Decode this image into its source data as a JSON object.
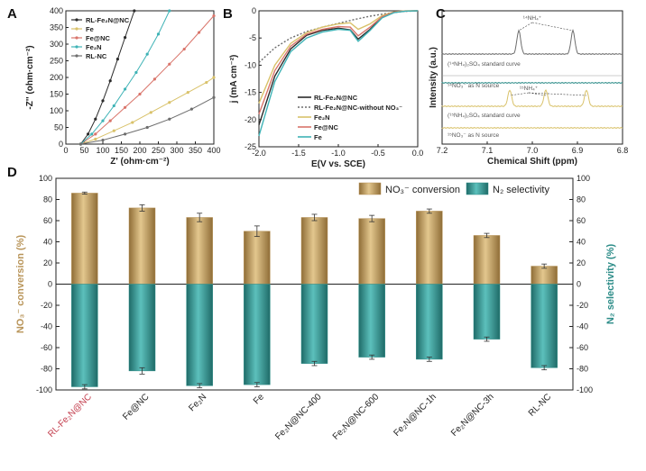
{
  "colors": {
    "rl_fe2n": "#2b2b2b",
    "fe": "#d9c26a",
    "fe_nc": "#d9746a",
    "fe2n": "#3fb3b6",
    "rl_nc": "#6d6d6d",
    "d_conv": "#b9955a",
    "d_sel": "#2c8c88",
    "highlight": "#c23a4a"
  },
  "chart_data": [
    {
      "panel": "A",
      "type": "line",
      "xlabel": "Z' (ohm·cm⁻²)",
      "ylabel": "-Z'' (ohm·cm⁻²)",
      "xlim": [
        0,
        400
      ],
      "ylim": [
        0,
        400
      ],
      "xticks": [
        "0",
        "50",
        "100",
        "150",
        "200",
        "250",
        "300",
        "350",
        "400"
      ],
      "yticks": [
        "0",
        "50",
        "100",
        "150",
        "200",
        "250",
        "300",
        "350",
        "400"
      ],
      "series": [
        {
          "name": "RL-Fe₂N@NC",
          "color_key": "rl_fe2n",
          "x": [
            40,
            60,
            80,
            100,
            120,
            140,
            160,
            185
          ],
          "y": [
            0,
            30,
            75,
            130,
            190,
            255,
            320,
            400
          ]
        },
        {
          "name": "Fe",
          "color_key": "fe",
          "x": [
            40,
            80,
            130,
            180,
            230,
            280,
            330,
            380,
            400
          ],
          "y": [
            0,
            15,
            40,
            65,
            95,
            125,
            155,
            185,
            200
          ]
        },
        {
          "name": "Fe@NC",
          "color_key": "fe_nc",
          "x": [
            40,
            80,
            120,
            160,
            200,
            240,
            280,
            320,
            360,
            400
          ],
          "y": [
            0,
            30,
            70,
            110,
            150,
            195,
            240,
            285,
            335,
            385
          ]
        },
        {
          "name": "Fe₂N",
          "color_key": "fe2n",
          "x": [
            40,
            70,
            100,
            130,
            160,
            190,
            220,
            250,
            280
          ],
          "y": [
            0,
            30,
            70,
            115,
            165,
            215,
            270,
            330,
            400
          ]
        },
        {
          "name": "RL-NC",
          "color_key": "rl_nc",
          "x": [
            40,
            100,
            160,
            220,
            280,
            340,
            400
          ],
          "y": [
            0,
            12,
            30,
            50,
            75,
            105,
            140
          ]
        }
      ]
    },
    {
      "panel": "B",
      "type": "line",
      "xlabel": "E(V vs. SCE)",
      "ylabel": "j (mA cm⁻²)",
      "xlim": [
        -2.0,
        0.0
      ],
      "ylim": [
        -25,
        0
      ],
      "xticks": [
        "-2.0",
        "-1.5",
        "-1.0",
        "-0.5",
        "0.0"
      ],
      "yticks": [
        "0",
        "-5",
        "-10",
        "-15",
        "-20",
        "-25"
      ],
      "series": [
        {
          "name": "RL-Fe₂N@NC",
          "color_key": "rl_fe2n",
          "x": [
            -2.0,
            -1.8,
            -1.6,
            -1.4,
            -1.2,
            -1.0,
            -0.85,
            -0.75,
            -0.6,
            -0.45,
            -0.3,
            -0.15,
            0.0
          ],
          "y": [
            -21,
            -12,
            -7,
            -4.5,
            -3.6,
            -3.2,
            -3.5,
            -5.2,
            -3.4,
            -1.2,
            -0.3,
            -0.05,
            0
          ]
        },
        {
          "name": "RL-Fe₂N@NC-without NO₃⁻",
          "color_key": "rl_nc",
          "x": [
            -2.0,
            -1.8,
            -1.6,
            -1.4,
            -1.2,
            -1.0,
            -0.8,
            -0.6,
            -0.4,
            -0.2,
            0.0
          ],
          "y": [
            -9.5,
            -6.8,
            -5.0,
            -3.8,
            -3.0,
            -2.3,
            -1.6,
            -1.0,
            -0.5,
            -0.15,
            0
          ]
        },
        {
          "name": "Fe₂N",
          "color_key": "fe",
          "x": [
            -2.0,
            -1.8,
            -1.6,
            -1.4,
            -1.2,
            -1.0,
            -0.85,
            -0.75,
            -0.6,
            -0.45,
            -0.3,
            -0.15,
            0.0
          ],
          "y": [
            -17,
            -10,
            -6,
            -4,
            -3.0,
            -2.4,
            -2.2,
            -3.4,
            -2.4,
            -0.9,
            -0.2,
            0,
            0
          ]
        },
        {
          "name": "Fe@NC",
          "color_key": "fe_nc",
          "x": [
            -2.0,
            -1.8,
            -1.6,
            -1.4,
            -1.2,
            -1.0,
            -0.85,
            -0.75,
            -0.6,
            -0.45,
            -0.3,
            -0.15,
            0.0
          ],
          "y": [
            -19,
            -11,
            -6.5,
            -4.3,
            -3.4,
            -2.9,
            -3.0,
            -4.6,
            -3.0,
            -1.1,
            -0.25,
            -0.03,
            0
          ]
        },
        {
          "name": "Fe",
          "color_key": "fe2n",
          "x": [
            -2.0,
            -1.8,
            -1.6,
            -1.4,
            -1.2,
            -1.0,
            -0.85,
            -0.75,
            -0.6,
            -0.45,
            -0.3,
            -0.15,
            0.0
          ],
          "y": [
            -23,
            -13,
            -7.5,
            -5,
            -3.9,
            -3.4,
            -3.6,
            -5.6,
            -3.6,
            -1.3,
            -0.35,
            -0.05,
            0
          ]
        }
      ]
    },
    {
      "panel": "C",
      "type": "line",
      "xlabel": "Chemical Shift (ppm)",
      "ylabel": "Intensity (a.u.)",
      "xlim": [
        7.2,
        6.8
      ],
      "xticks": [
        "7.2",
        "7.1",
        "7.0",
        "6.9",
        "6.8"
      ],
      "annotations": [
        "¹⁴NH₄⁺",
        "(¹⁴NH₄)₂SO₄ standard curve",
        "¹⁴NO₃⁻ as N source",
        "¹⁵NH₄⁺",
        "(¹⁵NH₄)₂SO₄ standard curve",
        "¹⁵NO₃⁻ as N source"
      ],
      "series": [
        {
          "name": "(¹⁴NH₄)₂SO₄ standard curve",
          "color_key": "rl_nc",
          "peaks_ppm": [
            7.03,
            6.91
          ]
        },
        {
          "name": "¹⁴NO₃⁻ as N source",
          "color_key": "d_sel",
          "peaks_ppm": []
        },
        {
          "name": "(¹⁵NH₄)₂SO₄ standard curve",
          "color_key": "fe",
          "peaks_ppm": [
            7.05,
            6.97,
            6.88
          ]
        },
        {
          "name": "¹⁵NO₃⁻ as N source",
          "color_key": "fe",
          "peaks_ppm": []
        }
      ]
    },
    {
      "panel": "D",
      "type": "bar",
      "ylabel_left": "NO₃⁻ conversion (%)",
      "ylabel_right": "N₂ selectivity (%)",
      "ylim": [
        -100,
        100
      ],
      "yticks": [
        "100",
        "80",
        "60",
        "40",
        "20",
        "0",
        "-20",
        "-40",
        "-60",
        "-80",
        "-100"
      ],
      "highlight_category": "RL-Fe₂N@NC",
      "categories": [
        "RL-Fe₂N@NC",
        "Fe@NC",
        "Fe₂N",
        "Fe",
        "Fe₂N@NC-400",
        "Fe₂N@NC-600",
        "Fe₂N@NC-1h",
        "Fe₂N@NC-3h",
        "RL-NC"
      ],
      "series": [
        {
          "name": "NO₃⁻ conversion",
          "color_key": "d_conv",
          "values": [
            86,
            72,
            63,
            50,
            63,
            62,
            69,
            46,
            17
          ],
          "errors": [
            1,
            3,
            4,
            5,
            3,
            3,
            2,
            2,
            2
          ]
        },
        {
          "name": "N₂ selectivity",
          "color_key": "d_sel",
          "values": [
            -97,
            -82,
            -96,
            -95,
            -75,
            -69,
            -71,
            -52,
            -79
          ],
          "errors": [
            2,
            3,
            2,
            2,
            2,
            2,
            2,
            2,
            2
          ]
        }
      ]
    }
  ]
}
